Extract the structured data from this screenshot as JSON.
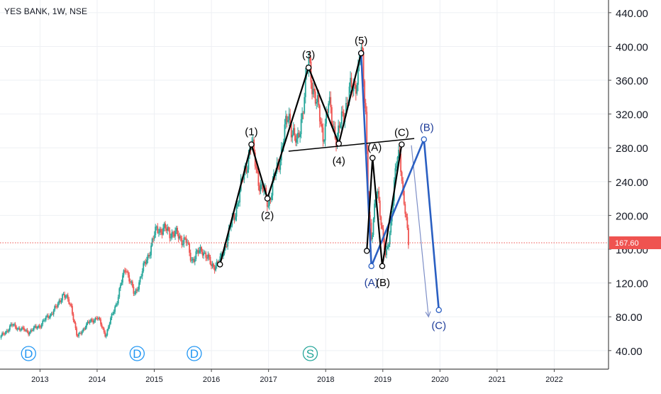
{
  "header": {
    "symbol_title": "YES BANK, 1W, NSE"
  },
  "colors": {
    "up": "#26a69a",
    "down": "#ef5350",
    "elliott": "#000000",
    "correction": "#2a5fc2",
    "projection": "#7e8fc7",
    "price_line": "#ef5350",
    "grid": "#eef0f4",
    "axis_text": "#131722",
    "event_blue": "#2196f3",
    "event_green": "#26a69a"
  },
  "chart_data": {
    "type": "candlestick",
    "y_axis": {
      "ticks": [
        "40.00",
        "80.00",
        "120.00",
        "160.00",
        "200.00",
        "240.00",
        "280.00",
        "320.00",
        "360.00",
        "400.00",
        "440.00"
      ],
      "ylim": [
        18,
        455
      ]
    },
    "x_axis": {
      "ticks": [
        "2013",
        "2014",
        "2015",
        "2016",
        "2017",
        "2018",
        "2019",
        "2020",
        "2021",
        "2022"
      ],
      "xlim": [
        2012.3,
        2022.95
      ]
    },
    "last_price": {
      "label": "167.60",
      "value": 167.6,
      "from_year": 2019.3
    },
    "price_path": [
      [
        2012.3,
        55
      ],
      [
        2012.5,
        70
      ],
      [
        2012.8,
        62
      ],
      [
        2013.0,
        70
      ],
      [
        2013.3,
        92
      ],
      [
        2013.4,
        108
      ],
      [
        2013.55,
        92
      ],
      [
        2013.65,
        55
      ],
      [
        2013.8,
        70
      ],
      [
        2014.0,
        80
      ],
      [
        2014.15,
        58
      ],
      [
        2014.35,
        100
      ],
      [
        2014.5,
        140
      ],
      [
        2014.65,
        105
      ],
      [
        2014.9,
        155
      ],
      [
        2015.05,
        185
      ],
      [
        2015.3,
        180
      ],
      [
        2015.55,
        170
      ],
      [
        2015.65,
        148
      ],
      [
        2015.85,
        160
      ],
      [
        2016.0,
        140
      ],
      [
        2016.15,
        145
      ],
      [
        2016.4,
        200
      ],
      [
        2016.7,
        285
      ],
      [
        2016.85,
        235
      ],
      [
        2017.0,
        215
      ],
      [
        2017.2,
        270
      ],
      [
        2017.35,
        320
      ],
      [
        2017.5,
        280
      ],
      [
        2017.65,
        355
      ],
      [
        2017.7,
        380
      ],
      [
        2017.85,
        330
      ],
      [
        2017.95,
        295
      ],
      [
        2018.05,
        330
      ],
      [
        2018.2,
        290
      ],
      [
        2018.4,
        345
      ],
      [
        2018.5,
        350
      ],
      [
        2018.62,
        393
      ],
      [
        2018.7,
        325
      ],
      [
        2018.75,
        215
      ],
      [
        2018.8,
        165
      ],
      [
        2018.9,
        240
      ],
      [
        2019.0,
        170
      ],
      [
        2019.05,
        150
      ],
      [
        2019.15,
        195
      ],
      [
        2019.25,
        270
      ],
      [
        2019.3,
        280
      ],
      [
        2019.35,
        225
      ],
      [
        2019.45,
        167.6
      ]
    ],
    "elliott_wave": {
      "points": [
        [
          2016.15,
          142
        ],
        [
          2016.7,
          284
        ],
        [
          2016.98,
          220
        ],
        [
          2017.7,
          375
        ],
        [
          2018.23,
          285
        ],
        [
          2018.62,
          392
        ]
      ],
      "labels": [
        "(1)",
        "(2)",
        "(3)",
        "(4)",
        "(5)"
      ],
      "label_pos": [
        "above",
        "below",
        "above",
        "below",
        "above"
      ]
    },
    "corrective_abc": {
      "points": [
        [
          2018.72,
          158
        ],
        [
          2018.82,
          268
        ],
        [
          2018.99,
          140
        ],
        [
          2019.33,
          284
        ]
      ],
      "labels": [
        "(A)",
        "(B)",
        "(C)"
      ]
    },
    "projected_abc": {
      "points": [
        [
          2018.62,
          392
        ],
        [
          2018.8,
          140
        ],
        [
          2019.72,
          290
        ],
        [
          2019.98,
          88
        ]
      ],
      "labels": [
        "(A)",
        "(B)",
        "(C)"
      ]
    },
    "trendline": {
      "from": [
        2017.35,
        276
      ],
      "to": [
        2019.55,
        291
      ]
    },
    "projection_arrow": {
      "from": [
        2019.5,
        283
      ],
      "to": [
        2019.8,
        80
      ]
    },
    "event_markers": [
      {
        "letter": "D",
        "x": 2012.8,
        "kind": "dividend"
      },
      {
        "letter": "D",
        "x": 2014.7,
        "kind": "dividend"
      },
      {
        "letter": "D",
        "x": 2015.7,
        "kind": "dividend"
      },
      {
        "letter": "S",
        "x": 2017.73,
        "kind": "split"
      }
    ]
  }
}
